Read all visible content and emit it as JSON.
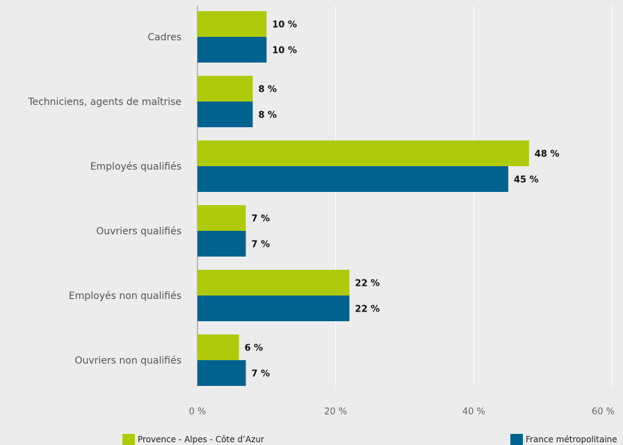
{
  "colors": {
    "s0": "#afca0b",
    "s1": "#00628f",
    "grid": "#ffffff",
    "axis": "#888888"
  },
  "chart_data": {
    "type": "bar",
    "orientation": "horizontal",
    "categories": [
      "Cadres",
      "Techniciens, agents de maîtrise",
      "Employés qualifiés",
      "Ouvriers qualifiés",
      "Employés non qualifiés",
      "Ouvriers non qualifiés"
    ],
    "series": [
      {
        "name": "Provence - Alpes - Côte d’Azur",
        "values": [
          10,
          8,
          48,
          7,
          22,
          6
        ],
        "labels": [
          "10 %",
          "8 %",
          "48 %",
          "7 %",
          "22 %",
          "6 %"
        ]
      },
      {
        "name": "France métropolitaine",
        "values": [
          10,
          8,
          45,
          7,
          22,
          7
        ],
        "labels": [
          "10 %",
          "8 %",
          "45 %",
          "7 %",
          "22 %",
          "7 %"
        ]
      }
    ],
    "xlim": [
      0,
      60
    ],
    "xticks": [
      0,
      20,
      40,
      60
    ],
    "xtick_labels": [
      "0 %",
      "20 %",
      "40 %",
      "60 %"
    ],
    "grid": true,
    "legend": "bottom"
  }
}
